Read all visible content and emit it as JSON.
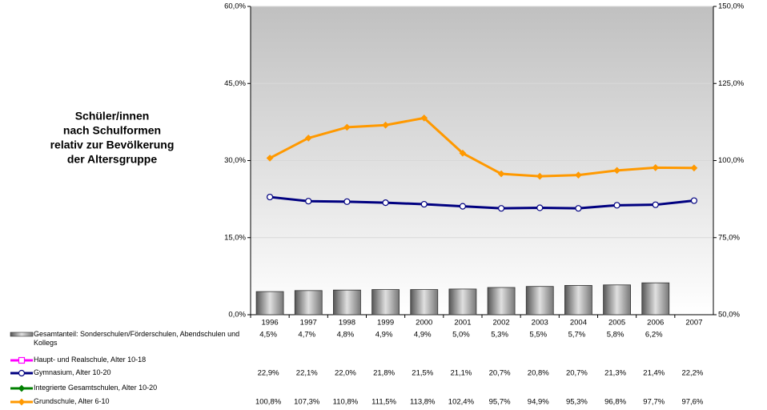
{
  "chart_data": {
    "type": "combo",
    "title": [
      "Schüler/innen",
      "nach Schulformen",
      "relativ zur Bevölkerung",
      "der Altersgruppe"
    ],
    "categories": [
      "1996",
      "1997",
      "1998",
      "1999",
      "2000",
      "2001",
      "2002",
      "2003",
      "2004",
      "2005",
      "2006",
      "2007"
    ],
    "ylim": [
      0,
      60
    ],
    "yticks": [
      {
        "value": 0,
        "label": "0,0%"
      },
      {
        "value": 15,
        "label": "15,0%"
      },
      {
        "value": 30,
        "label": "30,0%"
      },
      {
        "value": 45,
        "label": "45,0%"
      },
      {
        "value": 60,
        "label": "60,0%"
      }
    ],
    "y2lim": [
      50,
      150
    ],
    "y2ticks": [
      {
        "value": 50,
        "label": "50,0%"
      },
      {
        "value": 75,
        "label": "75,0%"
      },
      {
        "value": 100,
        "label": "100,0%"
      },
      {
        "value": 125,
        "label": "125,0%"
      },
      {
        "value": 150,
        "label": "150,0%"
      }
    ],
    "grid": true,
    "series": [
      {
        "name": "Gesamtanteil: Sonderschulen/Förderschulen, Abendschulen und Kollegs",
        "type": "bar",
        "color": "#808080",
        "values": [
          4.5,
          4.7,
          4.8,
          4.9,
          4.9,
          5.0,
          5.3,
          5.5,
          5.7,
          5.8,
          6.2,
          null
        ],
        "value_labels": [
          "4,5%",
          "4,7%",
          "4,8%",
          "4,9%",
          "4,9%",
          "5,0%",
          "5,3%",
          "5,5%",
          "5,7%",
          "5,8%",
          "6,2%",
          null
        ]
      },
      {
        "name": "Haupt- und Realschule, Alter 10-18",
        "type": "line",
        "color": "#ff00ff",
        "marker": "square",
        "values": [
          null,
          null,
          null,
          null,
          null,
          null,
          null,
          null,
          null,
          null,
          null,
          null
        ],
        "value_labels": [
          null,
          null,
          null,
          null,
          null,
          null,
          null,
          null,
          null,
          null,
          null,
          null
        ]
      },
      {
        "name": "Gymnasium, Alter 10-20",
        "type": "line",
        "color": "#000080",
        "marker": "circle",
        "values": [
          22.9,
          22.1,
          22.0,
          21.8,
          21.5,
          21.1,
          20.7,
          20.8,
          20.7,
          21.3,
          21.4,
          22.2
        ],
        "value_labels": [
          "22,9%",
          "22,1%",
          "22,0%",
          "21,8%",
          "21,5%",
          "21,1%",
          "20,7%",
          "20,8%",
          "20,7%",
          "21,3%",
          "21,4%",
          "22,2%"
        ]
      },
      {
        "name": "Integrierte Gesamtschulen, Alter 10-20",
        "type": "line",
        "color": "#008000",
        "marker": "diamond",
        "values": [
          null,
          null,
          null,
          null,
          null,
          null,
          null,
          null,
          null,
          null,
          null,
          null
        ],
        "value_labels": [
          null,
          null,
          null,
          null,
          null,
          null,
          null,
          null,
          null,
          null,
          null,
          null
        ]
      },
      {
        "name": "Grundschule, Alter 6-10",
        "type": "line",
        "color": "#ff9900",
        "marker": "diamond",
        "axis": "y2",
        "values": [
          100.8,
          107.3,
          110.8,
          111.5,
          113.8,
          102.4,
          95.7,
          94.9,
          95.3,
          96.8,
          97.7,
          97.6
        ],
        "value_labels": [
          "100,8%",
          "107,3%",
          "110,8%",
          "111,5%",
          "113,8%",
          "102,4%",
          "95,7%",
          "94,9%",
          "95,3%",
          "96,8%",
          "97,7%",
          "97,6%"
        ]
      }
    ]
  }
}
